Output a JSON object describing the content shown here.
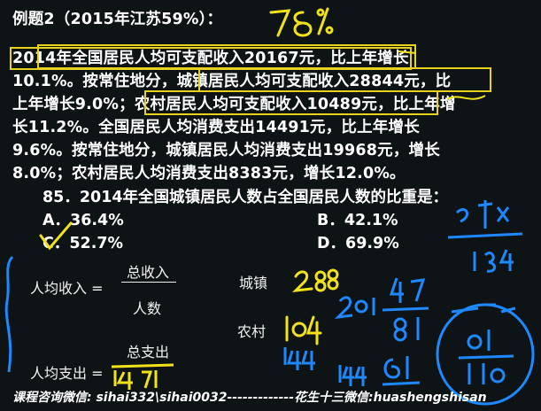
{
  "problem": {
    "title": "例题2（2015年江苏59%）：",
    "lines": [
      "2014年全国居民人均可支配收入20167元，比上年增长",
      "10.1%。按常住地分，城镇居民人均可支配收入28844元，比",
      "上年增长9.0%；农村居民人均可支配收入10489元，比上年增",
      "长11.2%。全国居民人均消费支出14491元，比上年增长",
      "9.6%。按常住地分，城镇居民人均消费支出19968元，增长",
      "8.0%；农村居民人均消费支出8383元，增长12.0%。"
    ],
    "question": "85．2014年全国城镇居民人数占全国居民人数的比重是：",
    "options": [
      {
        "letter": "A．",
        "value": "36.4%"
      },
      {
        "letter": "B．",
        "value": "42.1%"
      },
      {
        "letter": "C．",
        "value": "52.7%"
      },
      {
        "letter": "D．",
        "value": "69.9%"
      }
    ]
  },
  "notes": {
    "income_label": "人均收入 =",
    "income_num": "总收入",
    "income_den": "人数",
    "spend_label": "人均支出 =",
    "spend_num": "总支出",
    "urban": "城镇",
    "rural": "农村"
  },
  "footer": "课程咨询微信: sihai332\\sihai0032-------------花生十三微信:huashengshisan",
  "colors": {
    "highlight": "#e8d21d",
    "ink_yellow": "#f1e21a",
    "ink_blue": "#1e88ff",
    "background": "#0e1316"
  }
}
